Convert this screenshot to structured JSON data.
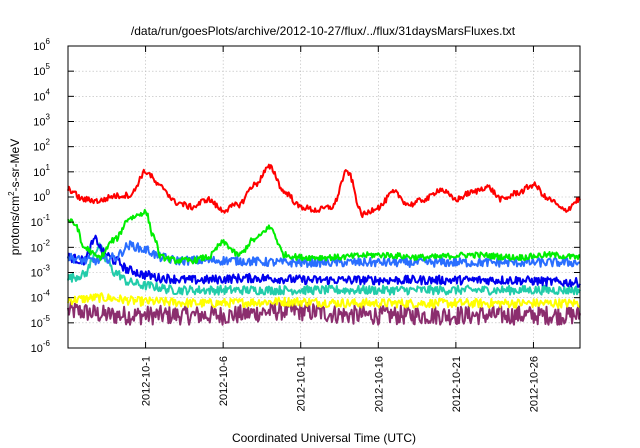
{
  "chart_data": {
    "type": "line",
    "title": "/data/run/goesPlots/archive/2012-10-27/flux/../flux/31daysMarsFluxes.txt",
    "xlabel": "Coordinated Universal Time (UTC)",
    "ylabel_base": "protons/cm",
    "ylabel_sup": "2",
    "ylabel_rest": "-s-sr-MeV",
    "yscale": "log",
    "ylim_exp": [
      -6,
      6
    ],
    "xlim_day": [
      26.8,
      28.6
    ],
    "x_unit": "day offset from 2012-10-01 is not printed; x values are dates 2012-09-26 .. 2012-10-29",
    "y_ticks": [
      {
        "base": "10",
        "exp": "-6"
      },
      {
        "base": "10",
        "exp": "-5"
      },
      {
        "base": "10",
        "exp": "-4"
      },
      {
        "base": "10",
        "exp": "-3"
      },
      {
        "base": "10",
        "exp": "-2"
      },
      {
        "base": "10",
        "exp": "-1"
      },
      {
        "base": "10",
        "exp": "0"
      },
      {
        "base": "10",
        "exp": "1"
      },
      {
        "base": "10",
        "exp": "2"
      },
      {
        "base": "10",
        "exp": "3"
      },
      {
        "base": "10",
        "exp": "4"
      },
      {
        "base": "10",
        "exp": "5"
      },
      {
        "base": "10",
        "exp": "6"
      }
    ],
    "x_ticks": [
      "2012-10-1",
      "2012-10-6",
      "2012-10-11",
      "2012-10-16",
      "2012-10-21",
      "2012-10-26"
    ],
    "x_start": "2012-09-26",
    "x_end": "2012-10-29",
    "grid": true,
    "legend": "none",
    "series": [
      {
        "color": "#ff0000",
        "kind": "smooth",
        "x": [
          "2012-09-26",
          "2012-09-27",
          "2012-09-28",
          "2012-09-29",
          "2012-09-30",
          "2012-10-01",
          "2012-10-02",
          "2012-10-03",
          "2012-10-04",
          "2012-10-05",
          "2012-10-06",
          "2012-10-07",
          "2012-10-08",
          "2012-10-09",
          "2012-10-10",
          "2012-10-11",
          "2012-10-12",
          "2012-10-13",
          "2012-10-14",
          "2012-10-15",
          "2012-10-16",
          "2012-10-17",
          "2012-10-18",
          "2012-10-19",
          "2012-10-20",
          "2012-10-21",
          "2012-10-22",
          "2012-10-23",
          "2012-10-24",
          "2012-10-25",
          "2012-10-26",
          "2012-10-27",
          "2012-10-28",
          "2012-10-29"
        ],
        "y": [
          2.0,
          0.8,
          0.7,
          1.1,
          1.2,
          10,
          2.5,
          0.6,
          0.4,
          0.8,
          0.3,
          0.5,
          3,
          15,
          1.5,
          0.4,
          0.3,
          0.4,
          10,
          0.2,
          0.4,
          1.5,
          0.5,
          0.8,
          2.0,
          0.8,
          1.5,
          2.5,
          0.8,
          1.5,
          3,
          0.8,
          0.3,
          0.8
        ]
      },
      {
        "color": "#00ee00",
        "kind": "smooth",
        "x": [
          "2012-09-26",
          "2012-09-26.5",
          "2012-09-27",
          "2012-09-28",
          "2012-09-29",
          "2012-09-30",
          "2012-10-01",
          "2012-10-01.5",
          "2012-10-02",
          "2012-10-03",
          "2012-10-04",
          "2012-10-05",
          "2012-10-06",
          "2012-10-07",
          "2012-10-08",
          "2012-10-09",
          "2012-10-10",
          "2012-10-11",
          "2012-10-13",
          "2012-10-16",
          "2012-10-19",
          "2012-10-22",
          "2012-10-25",
          "2012-10-27",
          "2012-10-29"
        ],
        "y": [
          0.12,
          0.08,
          0.01,
          0.004,
          0.02,
          0.15,
          0.25,
          0.03,
          0.004,
          0.003,
          0.003,
          0.004,
          0.015,
          0.005,
          0.02,
          0.06,
          0.005,
          0.004,
          0.004,
          0.005,
          0.004,
          0.005,
          0.004,
          0.005,
          0.004
        ]
      },
      {
        "color": "#2a6eff",
        "kind": "noisy",
        "x": [
          "2012-09-26",
          "2012-09-27",
          "2012-09-28",
          "2012-09-29",
          "2012-09-30",
          "2012-10-01",
          "2012-10-02",
          "2012-10-03",
          "2012-10-06",
          "2012-10-10",
          "2012-10-14",
          "2012-10-18",
          "2012-10-22",
          "2012-10-26",
          "2012-10-29"
        ],
        "y": [
          0.004,
          0.003,
          0.003,
          0.004,
          0.012,
          0.008,
          0.004,
          0.003,
          0.003,
          0.0025,
          0.0025,
          0.0025,
          0.0025,
          0.0025,
          0.0025
        ]
      },
      {
        "color": "#0000ee",
        "kind": "noisy",
        "x": [
          "2012-09-26",
          "2012-09-27",
          "2012-09-27.8",
          "2012-09-28.3",
          "2012-09-29",
          "2012-09-30",
          "2012-10-01",
          "2012-10-02",
          "2012-10-04",
          "2012-10-08",
          "2012-10-12",
          "2012-10-16",
          "2012-10-20",
          "2012-10-24",
          "2012-10-29"
        ],
        "y": [
          0.004,
          0.003,
          0.02,
          0.006,
          0.003,
          0.0012,
          0.0008,
          0.0006,
          0.0005,
          0.0006,
          0.0005,
          0.0005,
          0.0005,
          0.0005,
          0.0004
        ]
      },
      {
        "color": "#22ccaa",
        "kind": "noisy",
        "x": [
          "2012-09-26",
          "2012-09-27",
          "2012-09-28",
          "2012-09-28.5",
          "2012-09-29",
          "2012-09-30",
          "2012-10-01",
          "2012-10-03",
          "2012-10-06",
          "2012-10-10",
          "2012-10-15",
          "2012-10-20",
          "2012-10-25",
          "2012-10-29"
        ],
        "y": [
          0.0006,
          0.0008,
          0.01,
          0.003,
          0.001,
          0.0004,
          0.0003,
          0.0002,
          0.0002,
          0.0002,
          0.0002,
          0.0002,
          0.0002,
          0.0002
        ]
      },
      {
        "color": "#ffff00",
        "kind": "noisy",
        "x": [
          "2012-09-26",
          "2012-09-28",
          "2012-10-01",
          "2012-10-05",
          "2012-10-10",
          "2012-10-15",
          "2012-10-20",
          "2012-10-25",
          "2012-10-29"
        ],
        "y": [
          8e-05,
          0.0001,
          7e-05,
          6e-05,
          7e-05,
          6e-05,
          6e-05,
          6e-05,
          6e-05
        ]
      },
      {
        "color": "#8b2e6e",
        "kind": "noisy-strong",
        "x": [
          "2012-09-26",
          "2012-09-29",
          "2012-10-02",
          "2012-10-06",
          "2012-10-10",
          "2012-10-15",
          "2012-10-20",
          "2012-10-25",
          "2012-10-29"
        ],
        "y": [
          3e-05,
          2e-05,
          2e-05,
          2e-05,
          3e-05,
          2e-05,
          2e-05,
          2e-05,
          2e-05
        ]
      }
    ]
  }
}
